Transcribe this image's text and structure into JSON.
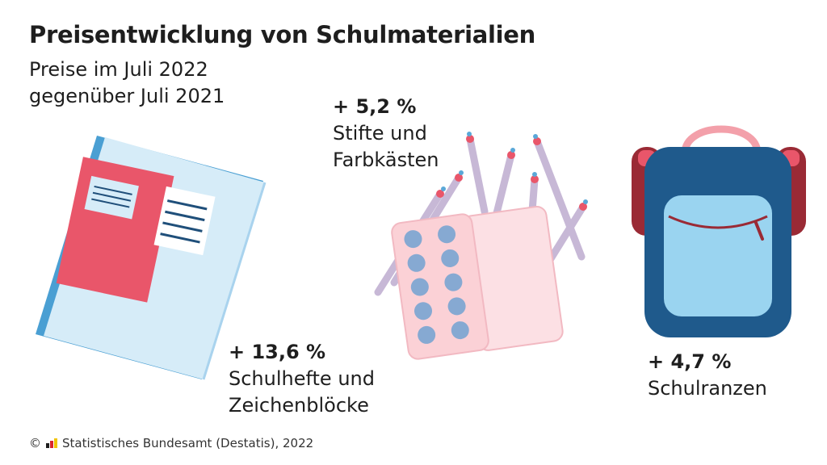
{
  "header": {
    "title": "Preisentwicklung von Schulmaterialien",
    "subtitle_line1": "Preise im Juli 2022",
    "subtitle_line2": "gegenüber Juli 2021"
  },
  "chart_data": {
    "type": "infographic",
    "unit": "%",
    "categories": [
      "Schulhefte und Zeichenblöcke",
      "Stifte und Farbkästen",
      "Schulranzen"
    ],
    "values": [
      13.6,
      5.2,
      4.7
    ],
    "items": [
      {
        "value_label": "+ 13,6 %",
        "line1": "Schulhefte und",
        "line2": "Zeichenblöcke",
        "icon": "notebook-icon"
      },
      {
        "value_label": "+ 5,2 %",
        "line1": "Stifte und",
        "line2": "Farbkästen",
        "icon": "pencils-paintbox-icon"
      },
      {
        "value_label": "+ 4,7 %",
        "line1": "Schulranzen",
        "line2": "",
        "icon": "backpack-icon"
      }
    ]
  },
  "footer": {
    "copyright_symbol": "©",
    "source": "Statistisches Bundesamt (Destatis), 2022"
  },
  "colors": {
    "notebook_blue": "#d6ecf8",
    "notebook_red": "#e9566a",
    "paint_pink": "#fbd1d6",
    "paint_dot": "#86a9d2",
    "backpack_navy": "#1f5a8c",
    "backpack_light": "#9ad4f0",
    "backpack_strap": "#9a2a35"
  }
}
